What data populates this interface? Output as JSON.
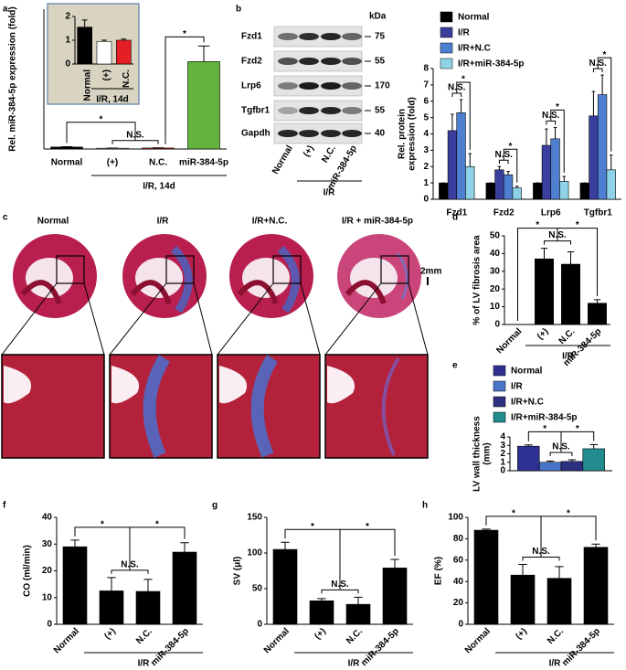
{
  "chart_data": [
    {
      "panel": "a",
      "type": "bar",
      "y_label": "Rel. miR-384-5p expression (fold)",
      "categories": [
        "Normal",
        "(+)",
        "N.C.",
        "miR-384-5p"
      ],
      "group_label": "I/R, 14d",
      "values": [
        1.0,
        0.4,
        0.5,
        45
      ],
      "errors": [
        0.2,
        0.1,
        0.1,
        8
      ],
      "colors": [
        "#000000",
        "#ffffff",
        "#e31e24",
        "#62b43f"
      ],
      "ylim": [
        0,
        72
      ],
      "annotations": [
        "*",
        "N.S.",
        "*"
      ],
      "inset": {
        "type": "bar",
        "categories": [
          "Normal",
          "(+)",
          "N.C."
        ],
        "group_label": "I/R, 14d",
        "values": [
          1.55,
          0.95,
          1.0
        ],
        "errors": [
          0.3,
          0.05,
          0.05
        ],
        "colors": [
          "#000000",
          "#ffffff",
          "#e31e24"
        ],
        "ylim": [
          0,
          2
        ],
        "yticks": [
          0,
          1,
          2
        ]
      }
    },
    {
      "panel": "b",
      "type": "bar",
      "y_label": [
        "Rel. protein",
        "expression (fold)"
      ],
      "categories": [
        "Fzd1",
        "Fzd2",
        "Lrp6",
        "Tgfbr1"
      ],
      "legend": "top",
      "series": [
        {
          "name": "Normal",
          "color": "#000000",
          "values": [
            1,
            1,
            1,
            1
          ],
          "errors": [
            0,
            0,
            0,
            0
          ]
        },
        {
          "name": "I/R",
          "color": "#3a3f9e",
          "values": [
            4.2,
            1.8,
            3.3,
            5.1
          ],
          "errors": [
            1.0,
            0.2,
            1.0,
            1.5
          ]
        },
        {
          "name": "I/R+N.C",
          "color": "#4f7fd0",
          "values": [
            5.3,
            1.5,
            3.7,
            6.4
          ],
          "errors": [
            0.8,
            0.2,
            0.7,
            1.2
          ]
        },
        {
          "name": "I/R+miR-384-5p",
          "color": "#8fd3e8",
          "values": [
            2.0,
            0.7,
            1.1,
            1.8
          ],
          "errors": [
            0.8,
            0.1,
            0.3,
            0.9
          ]
        }
      ],
      "ylim": [
        0,
        8
      ],
      "yticks": [
        0,
        1,
        2,
        3,
        4,
        5,
        6,
        7,
        8
      ],
      "annotations": [
        "N.S.",
        "*",
        "N.S.",
        "*",
        "N.S.",
        "*",
        "N.S.",
        "*"
      ]
    },
    {
      "panel": "d",
      "type": "bar",
      "y_label": "% of LV fibrosis area",
      "categories": [
        "Normal",
        "(+)",
        "N.C.",
        "miR-384-5p"
      ],
      "group_label": "I/R",
      "values": [
        0,
        37,
        34,
        12
      ],
      "errors": [
        0,
        6,
        7,
        2
      ],
      "colors": [
        "#000000",
        "#000000",
        "#000000",
        "#000000"
      ],
      "ylim": [
        0,
        50
      ],
      "yticks": [
        0,
        10,
        20,
        30,
        40,
        50
      ],
      "annotations": [
        "*",
        "N.S.",
        "*"
      ]
    },
    {
      "panel": "e",
      "type": "bar",
      "y_label": [
        "LV wall thickness",
        "(mm)"
      ],
      "legend": "top-left",
      "series": [
        {
          "name": "Normal",
          "color": "#2e3192",
          "values": [
            2.9
          ],
          "errors": [
            0.15
          ]
        },
        {
          "name": "I/R",
          "color": "#4a74c8",
          "values": [
            1.0
          ],
          "errors": [
            0.15
          ]
        },
        {
          "name": "I/R+N.C",
          "color": "#2d2f80",
          "values": [
            1.1
          ],
          "errors": [
            0.2
          ]
        },
        {
          "name": "I/R+miR-384-5p",
          "color": "#218b8e",
          "values": [
            2.6
          ],
          "errors": [
            0.5
          ]
        }
      ],
      "ylim": [
        0,
        4
      ],
      "yticks": [
        0,
        1,
        2,
        3,
        4
      ],
      "annotations": [
        "*",
        "N.S.",
        "*"
      ]
    },
    {
      "panel": "f",
      "type": "bar",
      "y_label": "CO (ml/min)",
      "categories": [
        "Normal",
        "(+)",
        "N.C.",
        "miR-384-5p"
      ],
      "group_label": "I/R",
      "values": [
        29,
        12.5,
        12.3,
        27
      ],
      "errors": [
        2.5,
        5,
        4.5,
        3.5
      ],
      "colors": [
        "#000000",
        "#000000",
        "#000000",
        "#000000"
      ],
      "ylim": [
        0,
        40
      ],
      "yticks": [
        0,
        10,
        20,
        30,
        40
      ],
      "annotations": [
        "*",
        "N.S.",
        "*"
      ]
    },
    {
      "panel": "g",
      "type": "bar",
      "y_label": "SV (μl)",
      "categories": [
        "Normal",
        "(+)",
        "N.C.",
        "miR-384-5p"
      ],
      "group_label": "I/R",
      "values": [
        105,
        33,
        28,
        79
      ],
      "errors": [
        10,
        3,
        10,
        12
      ],
      "colors": [
        "#000000",
        "#000000",
        "#000000",
        "#000000"
      ],
      "ylim": [
        0,
        150
      ],
      "yticks": [
        0,
        50,
        100,
        150
      ],
      "annotations": [
        "*",
        "N.S.",
        "*"
      ]
    },
    {
      "panel": "h",
      "type": "bar",
      "y_label": "EF (%)",
      "categories": [
        "Normal",
        "(+)",
        "N.C.",
        "miR-384-5p"
      ],
      "group_label": "I/R",
      "values": [
        88,
        46,
        43,
        72
      ],
      "errors": [
        1,
        10,
        11,
        3
      ],
      "colors": [
        "#000000",
        "#000000",
        "#000000",
        "#000000"
      ],
      "ylim": [
        0,
        100
      ],
      "yticks": [
        0,
        20,
        40,
        60,
        80,
        100
      ],
      "annotations": [
        "*",
        "N.S.",
        "*"
      ]
    }
  ],
  "figure": {
    "blot": {
      "unit": "kDa",
      "rows": [
        {
          "label": "Fzd1",
          "marker": 75
        },
        {
          "label": "Fzd2",
          "marker": 55
        },
        {
          "label": "Lrp6",
          "marker": 170
        },
        {
          "label": "Tgfbr1",
          "marker": 55
        },
        {
          "label": "Gapdh",
          "marker": 40
        }
      ],
      "lanes": [
        "Normal",
        "(+)",
        "N.C.",
        "miR-384-5p"
      ],
      "group_label": "I/R"
    },
    "histology": {
      "panel": "c",
      "labels": [
        "Normal",
        "I/R",
        "I/R+N.C.",
        "I/R + miR-384-5p"
      ],
      "scale_bar": "2mm"
    }
  }
}
